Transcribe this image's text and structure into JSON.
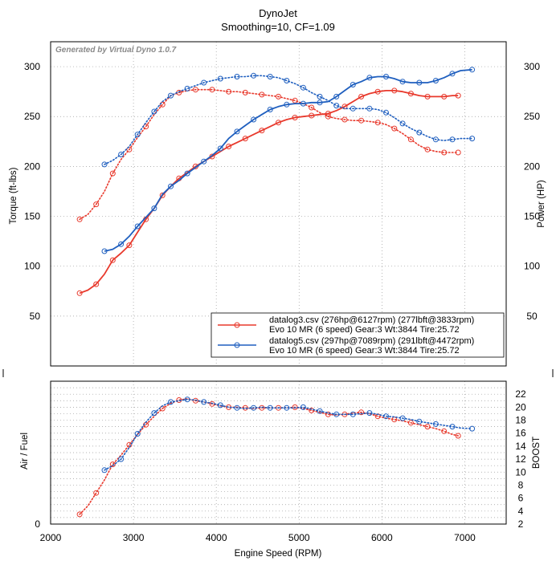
{
  "chart_data": [
    {
      "type": "line",
      "title": "DynoJet",
      "subtitle": "Smoothing=10, CF=1.09",
      "watermark": "Generated by Virtual Dyno 1.0.7",
      "ylabel": "Torque (ft-lbs)",
      "y2label": "Power (HP)",
      "xlim": [
        2000,
        7500
      ],
      "ylim": [
        0,
        325
      ],
      "y2lim": [
        0,
        325
      ],
      "x_ticks": [
        2000,
        3000,
        4000,
        5000,
        6000,
        7000
      ],
      "y_ticks": [
        50,
        100,
        150,
        200,
        250,
        300
      ],
      "y2_ticks": [
        50,
        100,
        150,
        200,
        250,
        300
      ],
      "grid": true,
      "legend_position": "bottom-right",
      "legend": [
        {
          "line1": "datalog3.csv (276hp@6127rpm) (277lbft@3833rpm)",
          "line2": "Evo 10 MR (6 speed) Gear:3 Wt:3844 Tire:25.72",
          "color": "#e8392c"
        },
        {
          "line1": "datalog5.csv (297hp@7089rpm) (291lbft@4472rpm)",
          "line2": "Evo 10 MR (6 speed) Gear:3 Wt:3844 Tire:25.72",
          "color": "#1f5fbf"
        }
      ],
      "series": [
        {
          "name": "datalog3 torque",
          "style": "dotted",
          "color": "#e8392c",
          "axis": "left",
          "x": [
            2350,
            2450,
            2550,
            2650,
            2750,
            2850,
            2950,
            3050,
            3150,
            3250,
            3350,
            3450,
            3550,
            3650,
            3750,
            3850,
            3950,
            4050,
            4150,
            4250,
            4350,
            4450,
            4550,
            4650,
            4750,
            4850,
            4950,
            5050,
            5150,
            5250,
            5350,
            5450,
            5550,
            5650,
            5750,
            5850,
            5950,
            6050,
            6150,
            6250,
            6350,
            6450,
            6550,
            6650,
            6750,
            6850,
            6920
          ],
          "y": [
            147,
            152,
            162,
            175,
            193,
            207,
            217,
            229,
            240,
            252,
            262,
            271,
            274,
            276,
            277,
            277,
            277,
            276,
            275,
            275,
            274,
            273,
            272,
            271,
            270,
            268,
            266,
            263,
            259,
            254,
            250,
            248,
            247,
            246,
            246,
            245,
            244,
            242,
            238,
            233,
            227,
            221,
            217,
            215,
            214,
            214,
            214
          ]
        },
        {
          "name": "datalog3 power",
          "style": "solid",
          "color": "#e8392c",
          "axis": "right",
          "x": [
            2350,
            2450,
            2550,
            2650,
            2750,
            2850,
            2950,
            3050,
            3150,
            3250,
            3350,
            3450,
            3550,
            3650,
            3750,
            3850,
            3950,
            4050,
            4150,
            4250,
            4350,
            4450,
            4550,
            4650,
            4750,
            4850,
            4950,
            5050,
            5150,
            5250,
            5350,
            5450,
            5550,
            5650,
            5750,
            5850,
            5950,
            6050,
            6150,
            6250,
            6350,
            6450,
            6550,
            6650,
            6750,
            6850,
            6920
          ],
          "y": [
            73,
            76,
            82,
            92,
            106,
            113,
            121,
            134,
            147,
            158,
            171,
            180,
            188,
            194,
            200,
            205,
            210,
            215,
            220,
            224,
            228,
            232,
            236,
            240,
            244,
            247,
            249,
            250,
            251,
            252,
            253,
            256,
            260,
            265,
            270,
            273,
            275,
            276,
            276,
            275,
            273,
            271,
            270,
            270,
            270,
            271,
            271
          ]
        },
        {
          "name": "datalog5 torque",
          "style": "dotted",
          "color": "#1f5fbf",
          "axis": "left",
          "x": [
            2650,
            2750,
            2850,
            2950,
            3050,
            3150,
            3250,
            3350,
            3450,
            3550,
            3650,
            3750,
            3850,
            3950,
            4050,
            4150,
            4250,
            4350,
            4450,
            4550,
            4650,
            4750,
            4850,
            4950,
            5050,
            5150,
            5250,
            5350,
            5450,
            5550,
            5650,
            5750,
            5850,
            5950,
            6050,
            6150,
            6250,
            6350,
            6450,
            6550,
            6650,
            6750,
            6850,
            6950,
            7089
          ],
          "y": [
            202,
            206,
            212,
            220,
            232,
            244,
            255,
            265,
            271,
            275,
            278,
            281,
            284,
            286,
            288,
            289,
            290,
            290,
            291,
            291,
            290,
            289,
            286,
            283,
            279,
            274,
            270,
            266,
            261,
            258,
            258,
            258,
            258,
            257,
            254,
            249,
            243,
            238,
            234,
            230,
            227,
            226,
            227,
            228,
            228
          ]
        },
        {
          "name": "datalog5 power",
          "style": "solid",
          "color": "#1f5fbf",
          "axis": "right",
          "x": [
            2650,
            2750,
            2850,
            2950,
            3050,
            3150,
            3250,
            3350,
            3450,
            3550,
            3650,
            3750,
            3850,
            3950,
            4050,
            4150,
            4250,
            4350,
            4450,
            4550,
            4650,
            4750,
            4850,
            4950,
            5050,
            5150,
            5250,
            5350,
            5450,
            5550,
            5650,
            5750,
            5850,
            5950,
            6050,
            6150,
            6250,
            6350,
            6450,
            6550,
            6650,
            6750,
            6850,
            6950,
            7089
          ],
          "y": [
            115,
            117,
            122,
            130,
            140,
            149,
            158,
            172,
            180,
            186,
            193,
            199,
            205,
            211,
            218,
            228,
            235,
            241,
            247,
            252,
            257,
            260,
            262,
            263,
            263,
            264,
            264,
            265,
            270,
            276,
            282,
            285,
            289,
            290,
            290,
            288,
            285,
            284,
            284,
            284,
            286,
            289,
            293,
            296,
            297
          ]
        }
      ]
    },
    {
      "type": "line",
      "ylabel": "Air / Fuel",
      "y2label": "BOOST",
      "xlabel": "Engine Speed (RPM)",
      "xlim": [
        2000,
        7500
      ],
      "ylim": [
        2,
        24
      ],
      "x_ticks": [
        2000,
        3000,
        4000,
        5000,
        6000,
        7000
      ],
      "x_tick_labels": [
        "2000",
        "3000",
        "4000",
        "5000",
        "6000",
        "7000"
      ],
      "y_ticks_left": [
        {
          "value": 2,
          "label": "0"
        }
      ],
      "y2_ticks": [
        2,
        4,
        6,
        8,
        10,
        12,
        14,
        16,
        18,
        20,
        22
      ],
      "grid": true,
      "series": [
        {
          "name": "datalog3 boost",
          "style": "dotted",
          "color": "#e8392c",
          "axis": "right",
          "x": [
            2350,
            2450,
            2550,
            2650,
            2750,
            2850,
            2950,
            3050,
            3150,
            3250,
            3350,
            3450,
            3550,
            3650,
            3750,
            3850,
            3950,
            4050,
            4150,
            4250,
            4350,
            4450,
            4550,
            4650,
            4750,
            4850,
            4950,
            5050,
            5150,
            5250,
            5350,
            5450,
            5550,
            5650,
            5750,
            5850,
            5950,
            6050,
            6150,
            6250,
            6350,
            6450,
            6550,
            6650,
            6750,
            6850,
            6920
          ],
          "y": [
            3.5,
            4.8,
            6.8,
            8.8,
            11.2,
            12.6,
            14.2,
            15.8,
            17.3,
            18.6,
            19.8,
            20.6,
            21.1,
            21.3,
            21.0,
            20.8,
            20.5,
            20.2,
            20.0,
            20.0,
            19.9,
            19.8,
            19.9,
            19.9,
            19.9,
            19.9,
            20.0,
            19.8,
            19.5,
            19.2,
            18.9,
            18.8,
            18.9,
            19.1,
            19.2,
            19.0,
            18.6,
            18.3,
            18.1,
            17.9,
            17.6,
            17.3,
            17.0,
            16.7,
            16.3,
            15.8,
            15.6
          ]
        },
        {
          "name": "datalog5 boost",
          "style": "dotted",
          "color": "#1f5fbf",
          "axis": "right",
          "x": [
            2650,
            2750,
            2850,
            2950,
            3050,
            3150,
            3250,
            3350,
            3450,
            3550,
            3650,
            3750,
            3850,
            3950,
            4050,
            4150,
            4250,
            4350,
            4450,
            4550,
            4650,
            4750,
            4850,
            4950,
            5050,
            5150,
            5250,
            5350,
            5450,
            5550,
            5650,
            5750,
            5850,
            5950,
            6050,
            6150,
            6250,
            6350,
            6450,
            6550,
            6650,
            6750,
            6850,
            6950,
            7089
          ],
          "y": [
            10.3,
            11.0,
            12.0,
            13.8,
            15.9,
            17.7,
            19.1,
            20.2,
            20.8,
            21.0,
            21.2,
            21.1,
            20.8,
            20.6,
            20.3,
            20.0,
            19.9,
            19.8,
            19.9,
            20.0,
            19.9,
            19.9,
            19.9,
            19.9,
            20.0,
            19.7,
            19.4,
            19.1,
            18.9,
            18.9,
            18.9,
            19.0,
            19.1,
            18.9,
            18.6,
            18.5,
            18.3,
            18.1,
            17.8,
            17.6,
            17.4,
            17.2,
            17.0,
            16.8,
            16.7
          ]
        }
      ]
    }
  ]
}
